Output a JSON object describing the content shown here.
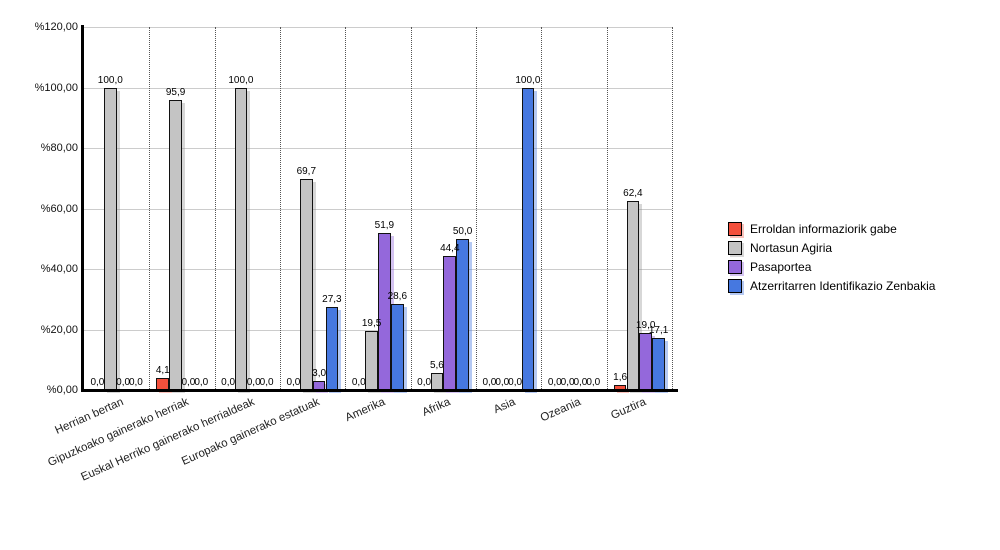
{
  "chart_data": {
    "type": "bar",
    "title": "",
    "xlabel": "",
    "ylabel": "",
    "ylim": [
      0,
      120
    ],
    "grid": {
      "horizontal": "solid-light-gray",
      "vertical": "dotted-between-categories"
    },
    "legend_position": "right",
    "value_label_format": "one decimal, comma separator (e.g. 100,0)",
    "categories": [
      "Herrian bertan",
      "Gipuzkoako gainerako herriak",
      "Euskal Herriko gainerako herrialdeak",
      "Europako gainerako estatuak",
      "Amerika",
      "Afrika",
      "Asia",
      "Ozeania",
      "Guztira"
    ],
    "series": [
      {
        "name": "Erroldan informaziorik gabe",
        "color": "#F4503C",
        "shadow": "rgba(244,80,60,0.35)",
        "values": [
          0.0,
          4.1,
          0.0,
          0.0,
          0.0,
          0.0,
          0.0,
          0.0,
          1.6
        ]
      },
      {
        "name": "Nortasun Agiria",
        "color": "#C4C4C4",
        "shadow": "rgba(140,140,140,0.35)",
        "values": [
          100.0,
          95.9,
          100.0,
          69.7,
          19.5,
          5.6,
          0.0,
          0.0,
          62.4
        ]
      },
      {
        "name": "Pasaportea",
        "color": "#9468DB",
        "shadow": "rgba(148,104,219,0.4)",
        "values": [
          0.0,
          0.0,
          0.0,
          3.0,
          51.9,
          44.4,
          0.0,
          0.0,
          19.0
        ]
      },
      {
        "name": "Atzerritarren Identifikazio Zenbakia",
        "color": "#4678E0",
        "shadow": "rgba(70,120,224,0.4)",
        "values": [
          0.0,
          0.0,
          0.0,
          27.3,
          28.6,
          50.0,
          100.0,
          0.0,
          17.1
        ]
      }
    ],
    "yticks": [
      {
        "value": 0,
        "label": "%0,00"
      },
      {
        "value": 20,
        "label": "%20,00"
      },
      {
        "value": 40,
        "label": "%40,00"
      },
      {
        "value": 60,
        "label": "%60,00"
      },
      {
        "value": 80,
        "label": "%80,00"
      },
      {
        "value": 100,
        "label": "%100,00"
      },
      {
        "value": 120,
        "label": "%120,00"
      }
    ]
  },
  "colors": {
    "background": "#FFFFFF",
    "axis": "#000000",
    "horizontal_grid": "#CCCCCC",
    "vertical_grid": "#555555",
    "bar_border": "#111111",
    "text": "#000000"
  }
}
